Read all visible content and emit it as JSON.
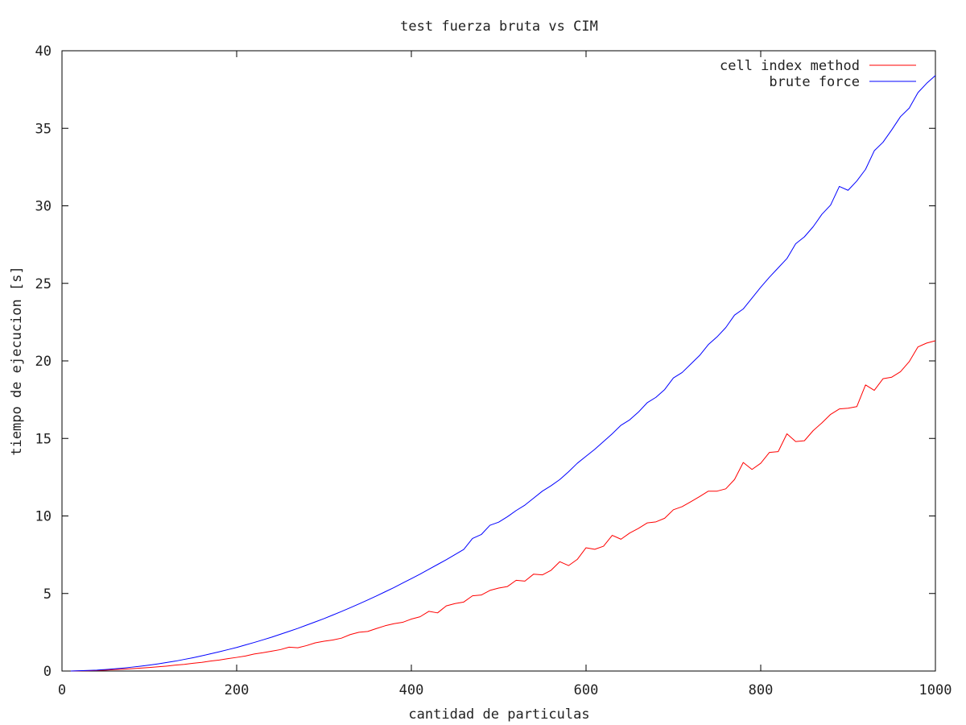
{
  "chart_data": {
    "type": "line",
    "title": "test fuerza bruta vs CIM",
    "xlabel": "cantidad de particulas",
    "ylabel": "tiempo de ejecucion [s]",
    "xlim": [
      0,
      1000
    ],
    "ylim": [
      0,
      40
    ],
    "xticks": [
      0,
      200,
      400,
      600,
      800,
      1000
    ],
    "yticks": [
      0,
      5,
      10,
      15,
      20,
      25,
      30,
      35,
      40
    ],
    "grid": false,
    "legend_position": "top-right",
    "x": [
      10,
      20,
      30,
      40,
      50,
      60,
      70,
      80,
      90,
      100,
      110,
      120,
      130,
      140,
      150,
      160,
      170,
      180,
      190,
      200,
      210,
      220,
      230,
      240,
      250,
      260,
      270,
      280,
      290,
      300,
      310,
      320,
      330,
      340,
      350,
      360,
      370,
      380,
      390,
      400,
      410,
      420,
      430,
      440,
      450,
      460,
      470,
      480,
      490,
      500,
      510,
      520,
      530,
      540,
      550,
      560,
      570,
      580,
      590,
      600,
      610,
      620,
      630,
      640,
      650,
      660,
      670,
      680,
      690,
      700,
      710,
      720,
      730,
      740,
      750,
      760,
      770,
      780,
      790,
      800,
      810,
      820,
      830,
      840,
      850,
      860,
      870,
      880,
      890,
      900,
      910,
      920,
      930,
      940,
      950,
      960,
      970,
      980,
      990,
      1000
    ],
    "series": [
      {
        "name": "cell index method",
        "color": "#ff0000",
        "values": [
          0.0,
          0.01,
          0.02,
          0.04,
          0.06,
          0.09,
          0.12,
          0.15,
          0.19,
          0.23,
          0.27,
          0.32,
          0.38,
          0.43,
          0.5,
          0.56,
          0.64,
          0.71,
          0.8,
          0.88,
          0.97,
          1.1,
          1.18,
          1.28,
          1.38,
          1.54,
          1.5,
          1.64,
          1.82,
          1.92,
          2.0,
          2.12,
          2.35,
          2.5,
          2.55,
          2.74,
          2.92,
          3.05,
          3.14,
          3.35,
          3.5,
          3.85,
          3.75,
          4.2,
          4.35,
          4.45,
          4.85,
          4.9,
          5.2,
          5.35,
          5.45,
          5.85,
          5.8,
          6.25,
          6.2,
          6.5,
          7.05,
          6.8,
          7.2,
          7.95,
          7.85,
          8.05,
          8.75,
          8.5,
          8.9,
          9.2,
          9.55,
          9.62,
          9.85,
          10.4,
          10.6,
          10.92,
          11.25,
          11.6,
          11.6,
          11.75,
          12.35,
          13.45,
          13.0,
          13.4,
          14.1,
          14.15,
          15.3,
          14.8,
          14.85,
          15.5,
          16.0,
          16.55,
          16.9,
          16.95,
          17.05,
          18.45,
          18.1,
          18.85,
          18.95,
          19.3,
          19.95,
          20.9,
          21.15,
          21.3
        ]
      },
      {
        "name": "brute force",
        "color": "#0000ff",
        "values": [
          0.0,
          0.02,
          0.04,
          0.06,
          0.1,
          0.14,
          0.19,
          0.25,
          0.31,
          0.38,
          0.46,
          0.55,
          0.64,
          0.75,
          0.86,
          0.98,
          1.11,
          1.24,
          1.38,
          1.52,
          1.68,
          1.84,
          2.01,
          2.18,
          2.37,
          2.56,
          2.75,
          2.96,
          3.17,
          3.38,
          3.61,
          3.84,
          4.08,
          4.33,
          4.58,
          4.84,
          5.11,
          5.38,
          5.67,
          5.96,
          6.25,
          6.56,
          6.87,
          7.18,
          7.51,
          7.84,
          8.55,
          8.8,
          9.4,
          9.6,
          9.95,
          10.35,
          10.7,
          11.15,
          11.6,
          11.95,
          12.35,
          12.85,
          13.4,
          13.85,
          14.3,
          14.8,
          15.3,
          15.85,
          16.2,
          16.7,
          17.3,
          17.65,
          18.15,
          18.9,
          19.25,
          19.8,
          20.35,
          21.05,
          21.55,
          22.15,
          22.95,
          23.35,
          24.05,
          24.75,
          25.4,
          26.0,
          26.6,
          27.55,
          28.0,
          28.65,
          29.45,
          30.05,
          31.25,
          31.0,
          31.6,
          32.35,
          33.55,
          34.1,
          34.9,
          35.75,
          36.3,
          37.3,
          37.9,
          38.4
        ]
      }
    ]
  }
}
